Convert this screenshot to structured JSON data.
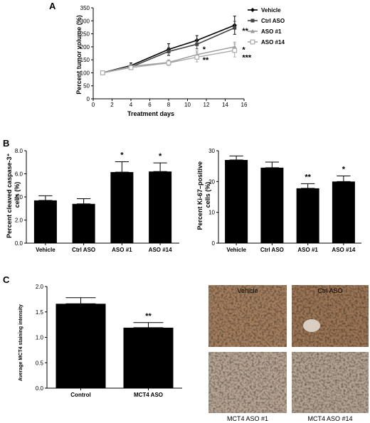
{
  "panel_labels": [
    "A",
    "B",
    "C"
  ],
  "chart_data": [
    {
      "id": "A",
      "type": "line",
      "xlabel": "Treatment days",
      "ylabel": "Percent tumor volume (%)",
      "xlim": [
        0,
        16
      ],
      "ylim": [
        0,
        350
      ],
      "xticks": [
        0,
        2,
        4,
        6,
        8,
        10,
        12,
        14,
        16
      ],
      "yticks": [
        0,
        50,
        100,
        150,
        200,
        250,
        300,
        350
      ],
      "legend_position": "top-right",
      "series": [
        {
          "name": "Vehicle",
          "color": "#000000",
          "marker": "diamond",
          "x": [
            1,
            4,
            8,
            11,
            15
          ],
          "y": [
            100,
            128,
            190,
            225,
            283
          ],
          "err": [
            5,
            10,
            22,
            18,
            35
          ]
        },
        {
          "name": "Ctrl ASO",
          "color": "#444444",
          "marker": "square",
          "x": [
            1,
            4,
            8,
            11,
            15
          ],
          "y": [
            100,
            122,
            182,
            210,
            273
          ],
          "err": [
            5,
            8,
            15,
            18,
            25
          ]
        },
        {
          "name": "ASO #1",
          "color": "#999999",
          "marker": "triangle",
          "x": [
            1,
            4,
            8,
            11,
            15
          ],
          "y": [
            100,
            125,
            140,
            170,
            200
          ],
          "err": [
            5,
            8,
            10,
            14,
            18
          ]
        },
        {
          "name": "ASO #14",
          "color": "#aaaaaa",
          "marker": "open-square",
          "x": [
            1,
            4,
            8,
            11,
            15
          ],
          "y": [
            100,
            120,
            138,
            160,
            186
          ],
          "err": [
            5,
            8,
            10,
            18,
            25
          ]
        }
      ],
      "annotations": [
        {
          "text": "*",
          "x": 11.6,
          "y": 192
        },
        {
          "text": "**",
          "x": 11.6,
          "y": 150
        },
        {
          "text": "**",
          "x": 15.8,
          "y": 263
        },
        {
          "text": "*",
          "x": 15.8,
          "y": 190
        },
        {
          "text": "***",
          "x": 15.8,
          "y": 160
        }
      ]
    },
    {
      "id": "B-left",
      "type": "bar",
      "ylabel": "Percent cleaved caspase-3+ cells (%)",
      "ylabel_lines": [
        "Percent cleaved caspase-3⁺",
        "cells (%)"
      ],
      "categories": [
        "Vehicle",
        "Ctrl ASO",
        "ASO #1",
        "ASO #14"
      ],
      "values": [
        3.7,
        3.4,
        6.15,
        6.2
      ],
      "errors": [
        0.4,
        0.45,
        0.9,
        0.75
      ],
      "significance": [
        "",
        "",
        "*",
        "*"
      ],
      "ylim": [
        0,
        8.0
      ],
      "yticks": [
        "0.0",
        "2.0",
        "4.0",
        "6.0",
        "8.0"
      ]
    },
    {
      "id": "B-right",
      "type": "bar",
      "ylabel": "Percent Ki-67–positive cells (%)",
      "ylabel_lines": [
        "Percent Ki-67–positive",
        "cells (%)"
      ],
      "categories": [
        "Vehicle",
        "Ctrl ASO",
        "ASO #1",
        "ASO #14"
      ],
      "values": [
        27.0,
        24.5,
        17.8,
        20.0
      ],
      "errors": [
        1.3,
        1.8,
        1.5,
        1.8
      ],
      "significance": [
        "",
        "",
        "**",
        "*"
      ],
      "ylim": [
        0,
        30
      ],
      "yticks": [
        "0",
        "10",
        "20",
        "30"
      ]
    },
    {
      "id": "C",
      "type": "bar",
      "ylabel": "Average MCT4 staining intensity",
      "categories": [
        "Control",
        "MCT4 ASO"
      ],
      "values": [
        1.66,
        1.19
      ],
      "errors": [
        0.12,
        0.1
      ],
      "significance": [
        "",
        "**"
      ],
      "ylim": [
        0,
        2.0
      ],
      "yticks": [
        "0.0",
        "0.5",
        "1.0",
        "1.5",
        "2.0"
      ]
    }
  ],
  "ihc_images": {
    "labels": [
      "Vehicle",
      "Ctrl ASO",
      "MCT4 ASO #1",
      "MCT4 ASO #14"
    ],
    "tones": [
      "#a37e5e",
      "#9b7555",
      "#b7a493",
      "#b3a291"
    ]
  }
}
